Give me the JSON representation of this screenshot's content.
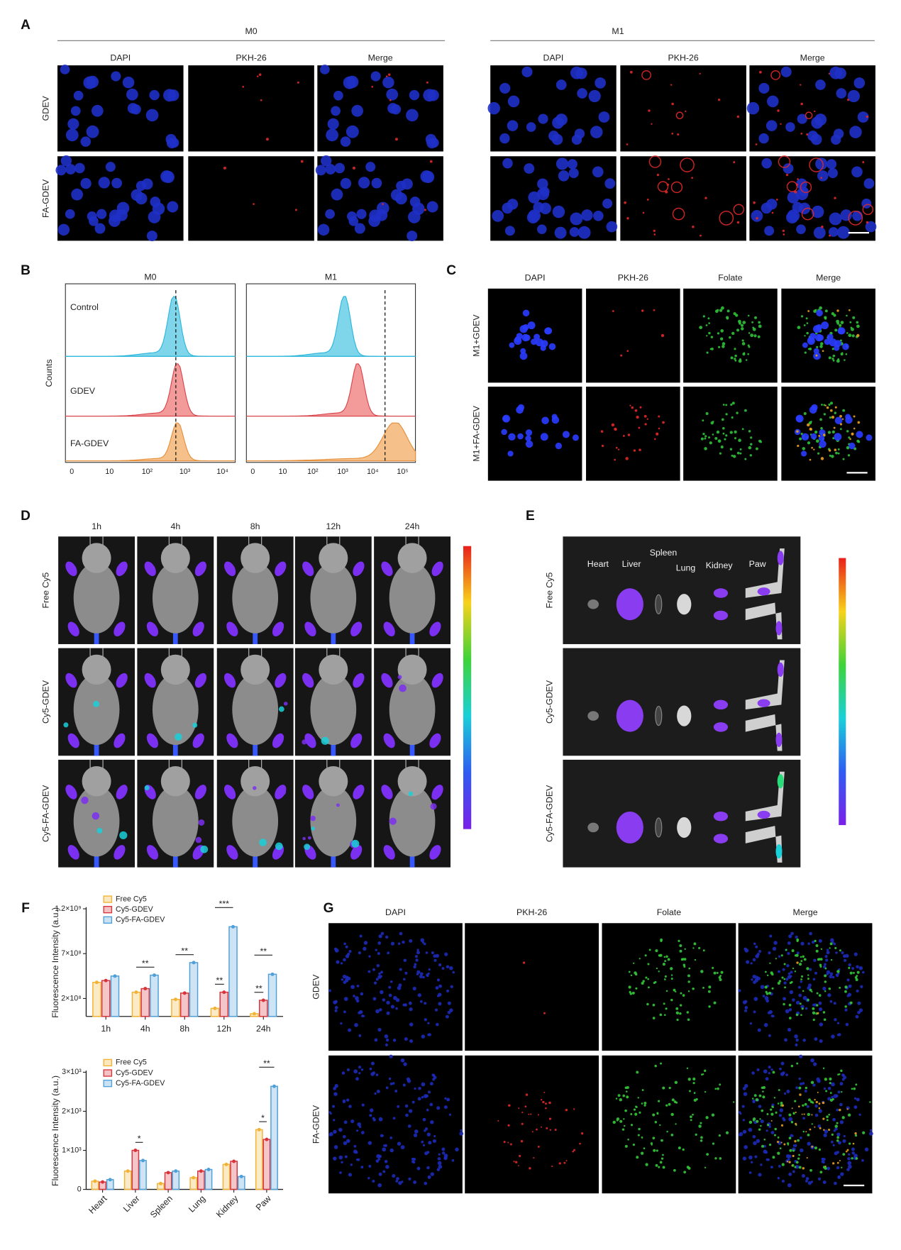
{
  "panels": {
    "A": {
      "label": "A",
      "groups": [
        {
          "title": "M0"
        },
        {
          "title": "M1"
        }
      ],
      "columns": [
        "DAPI",
        "PKH-26",
        "Merge"
      ],
      "rows": [
        "GDEV",
        "FA-GDEV"
      ]
    },
    "B": {
      "label": "B",
      "y_label": "Counts",
      "rows": [
        "Control",
        "GDEV",
        "FA-GDEV"
      ],
      "plots": [
        {
          "title": "M0",
          "xticks": [
            "0",
            "10",
            "10²",
            "10³",
            "10⁴"
          ]
        },
        {
          "title": "M1",
          "xticks": [
            "0",
            "10",
            "10²",
            "10³",
            "10⁴",
            "10⁵"
          ]
        }
      ]
    },
    "C": {
      "label": "C",
      "columns": [
        "DAPI",
        "PKH-26",
        "Folate",
        "Merge"
      ],
      "rows": [
        "M1+GDEV",
        "M1+FA-GDEV"
      ]
    },
    "D": {
      "label": "D",
      "columns": [
        "1h",
        "4h",
        "8h",
        "12h",
        "24h"
      ],
      "rows": [
        "Free Cy5",
        "Cy5-GDEV",
        "Cy5-FA-GDEV"
      ]
    },
    "E": {
      "label": "E",
      "organs": [
        "Heart",
        "Liver",
        "Spleen",
        "Lung",
        "Kidney",
        "Paw"
      ],
      "rows": [
        "Free Cy5",
        "Cy5-GDEV",
        "Cy5-FA-GDEV"
      ]
    },
    "F": {
      "label": "F"
    },
    "G": {
      "label": "G",
      "columns": [
        "DAPI",
        "PKH-26",
        "Folate",
        "Merge"
      ],
      "rows": [
        "GDEV",
        "FA-GDEV"
      ]
    }
  },
  "chart_data": [
    {
      "type": "bar",
      "y_label": "Fluorescence Intensity (a.u.)",
      "categories": [
        "1h",
        "4h",
        "8h",
        "12h",
        "24h"
      ],
      "series": [
        {
          "name": "Free Cy5",
          "color": "#f2b233",
          "values": [
            380000000,
            270000000,
            190000000,
            90000000,
            30000000
          ]
        },
        {
          "name": "Cy5-GDEV",
          "color": "#d8343c",
          "values": [
            400000000,
            310000000,
            260000000,
            270000000,
            180000000
          ]
        },
        {
          "name": "Cy5-FA-GDEV",
          "color": "#4f9fd8",
          "values": [
            450000000,
            460000000,
            600000000,
            1000000000,
            470000000
          ]
        }
      ],
      "ylim": [
        0,
        1200000000
      ],
      "yticks": [
        {
          "value": 200000000,
          "label": "2×10⁸"
        },
        {
          "value": 700000000,
          "label": "7×10⁸"
        },
        {
          "value": 1200000000,
          "label": "1.2×10⁹"
        }
      ],
      "legend": "upper left",
      "annotations": [
        {
          "text": "**",
          "category": "4h",
          "between": [
            "Free Cy5",
            "Cy5-FA-GDEV"
          ]
        },
        {
          "text": "**",
          "category": "8h",
          "between": [
            "Free Cy5",
            "Cy5-FA-GDEV"
          ]
        },
        {
          "text": "**",
          "category": "12h",
          "between": [
            "Free Cy5",
            "Cy5-GDEV"
          ]
        },
        {
          "text": "***",
          "category": "12h",
          "between": [
            "Free Cy5",
            "Cy5-FA-GDEV"
          ]
        },
        {
          "text": "**",
          "category": "24h",
          "between": [
            "Free Cy5",
            "Cy5-GDEV"
          ]
        },
        {
          "text": "**",
          "category": "24h",
          "between": [
            "Free Cy5",
            "Cy5-FA-GDEV"
          ]
        }
      ]
    },
    {
      "type": "bar",
      "y_label": "Fluorescence Intensity (a.u.)",
      "categories": [
        "Heart",
        "Liver",
        "Spleen",
        "Lung",
        "Kidney",
        "Paw"
      ],
      "series": [
        {
          "name": "Free Cy5",
          "color": "#f2b233",
          "values": [
            210,
            470,
            150,
            300,
            640,
            1530
          ]
        },
        {
          "name": "Cy5-GDEV",
          "color": "#d8343c",
          "values": [
            190,
            1000,
            430,
            470,
            720,
            1280
          ]
        },
        {
          "name": "Cy5-FA-GDEV",
          "color": "#4f9fd8",
          "values": [
            250,
            740,
            470,
            510,
            330,
            2640
          ]
        }
      ],
      "ylim": [
        0,
        3000
      ],
      "yticks": [
        0,
        {
          "value": 1000,
          "label": "1×10³"
        },
        {
          "value": 2000,
          "label": "2×10³"
        },
        {
          "value": 3000,
          "label": "3×10³"
        }
      ],
      "legend": "upper left",
      "annotations": [
        {
          "text": "*",
          "category": "Liver",
          "between": [
            "Cy5-GDEV",
            "Cy5-FA-GDEV"
          ]
        },
        {
          "text": "*",
          "category": "Paw",
          "between": [
            "Free Cy5",
            "Cy5-GDEV"
          ]
        },
        {
          "text": "**",
          "category": "Paw",
          "between": [
            "Free Cy5",
            "Cy5-FA-GDEV"
          ]
        }
      ]
    }
  ]
}
